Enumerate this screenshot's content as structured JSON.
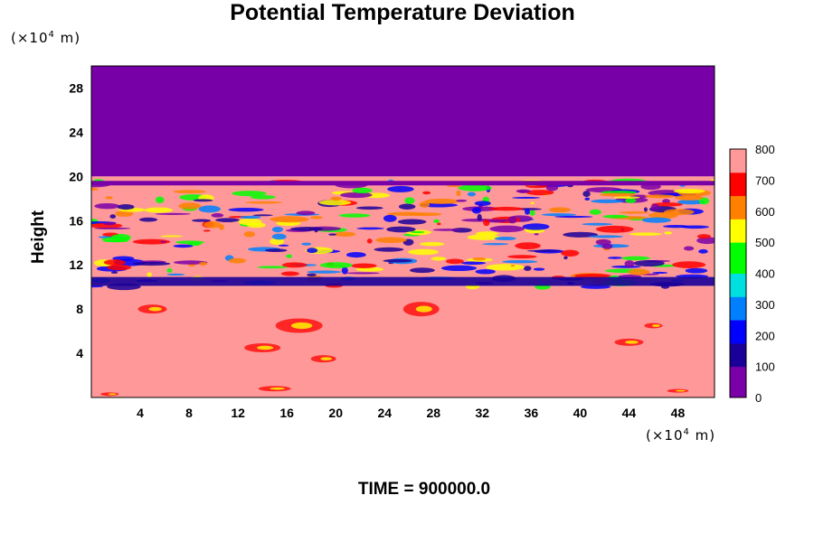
{
  "title": "Potential Temperature Deviation",
  "y_unit": {
    "prefix": "(×10",
    "exp": "4",
    "suffix": " m)"
  },
  "x_unit": {
    "prefix": "(×10",
    "exp": "4",
    "suffix": " m)"
  },
  "ylabel": "Height",
  "footer": "TIME = 900000.0",
  "chart_data": {
    "type": "heatmap",
    "title": "Potential Temperature Deviation",
    "xlabel": "",
    "ylabel": "Height",
    "x_unit": "×10^4 m",
    "y_unit": "×10^4 m",
    "xlim": [
      0,
      51
    ],
    "ylim": [
      0,
      30
    ],
    "x_ticks": [
      4,
      8,
      12,
      16,
      20,
      24,
      28,
      32,
      36,
      40,
      44,
      48
    ],
    "y_ticks": [
      4,
      8,
      12,
      16,
      20,
      24,
      28
    ],
    "colorbar": {
      "min": 0,
      "max": 800,
      "tick_values": [
        0,
        100,
        200,
        300,
        400,
        500,
        600,
        700,
        800
      ],
      "colors": [
        "#7a00a8",
        "#1a0099",
        "#0000ff",
        "#0080ff",
        "#00e0e0",
        "#00ff00",
        "#ffff00",
        "#ff8000",
        "#ff0000",
        "#ff9999"
      ]
    },
    "bands": [
      {
        "y_range": [
          20,
          30
        ],
        "value": 0,
        "description_color": "#7700a6"
      },
      {
        "y_range": [
          10,
          20
        ],
        "value": 800,
        "pattern": "turbulent"
      },
      {
        "y_range": [
          0,
          10
        ],
        "value": 800,
        "pattern": "smooth"
      }
    ],
    "grid": false
  }
}
